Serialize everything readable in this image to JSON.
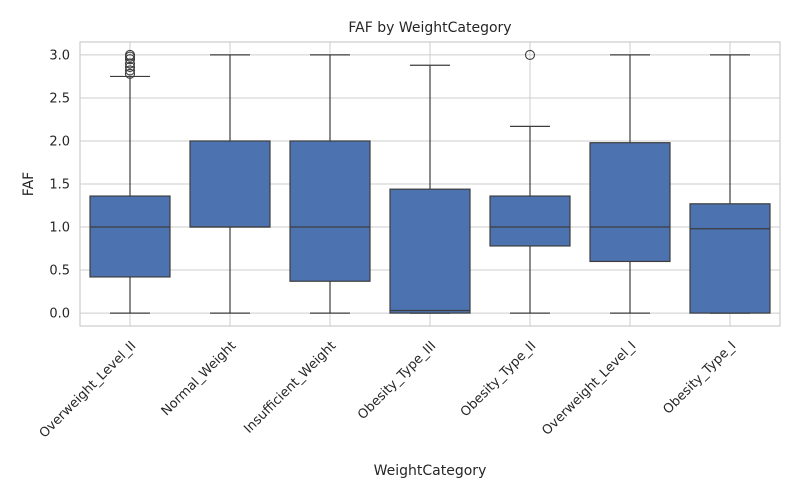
{
  "chart_data": {
    "type": "box",
    "title": "FAF by WeightCategory",
    "xlabel": "WeightCategory",
    "ylabel": "FAF",
    "ylim": [
      -0.15,
      3.15
    ],
    "yticks": [
      "0.0",
      "0.5",
      "1.0",
      "1.5",
      "2.0",
      "2.5",
      "3.0"
    ],
    "grid": true,
    "box_color": "#4c72b0",
    "categories": [
      "Overweight_Level_II",
      "Normal_Weight",
      "Insufficient_Weight",
      "Obesity_Type_III",
      "Obesity_Type_II",
      "Overweight_Level_I",
      "Obesity_Type_I"
    ],
    "boxes": [
      {
        "min": 0.0,
        "q1": 0.42,
        "median": 1.0,
        "q3": 1.36,
        "max": 2.75,
        "outliers": [
          2.78,
          2.82,
          2.86,
          2.9,
          2.95,
          2.98,
          3.0
        ]
      },
      {
        "min": 0.0,
        "q1": 1.0,
        "median": 1.0,
        "q3": 2.0,
        "max": 3.0,
        "outliers": []
      },
      {
        "min": 0.0,
        "q1": 0.37,
        "median": 1.0,
        "q3": 2.0,
        "max": 3.0,
        "outliers": []
      },
      {
        "min": 0.0,
        "q1": 0.0,
        "median": 0.03,
        "q3": 1.44,
        "max": 2.88,
        "outliers": []
      },
      {
        "min": 0.0,
        "q1": 0.78,
        "median": 1.0,
        "q3": 1.36,
        "max": 2.17,
        "outliers": [
          3.0
        ]
      },
      {
        "min": 0.0,
        "q1": 0.6,
        "median": 1.0,
        "q3": 1.98,
        "max": 3.0,
        "outliers": []
      },
      {
        "min": 0.0,
        "q1": 0.0,
        "median": 0.98,
        "q3": 1.27,
        "max": 3.0,
        "outliers": []
      }
    ]
  }
}
